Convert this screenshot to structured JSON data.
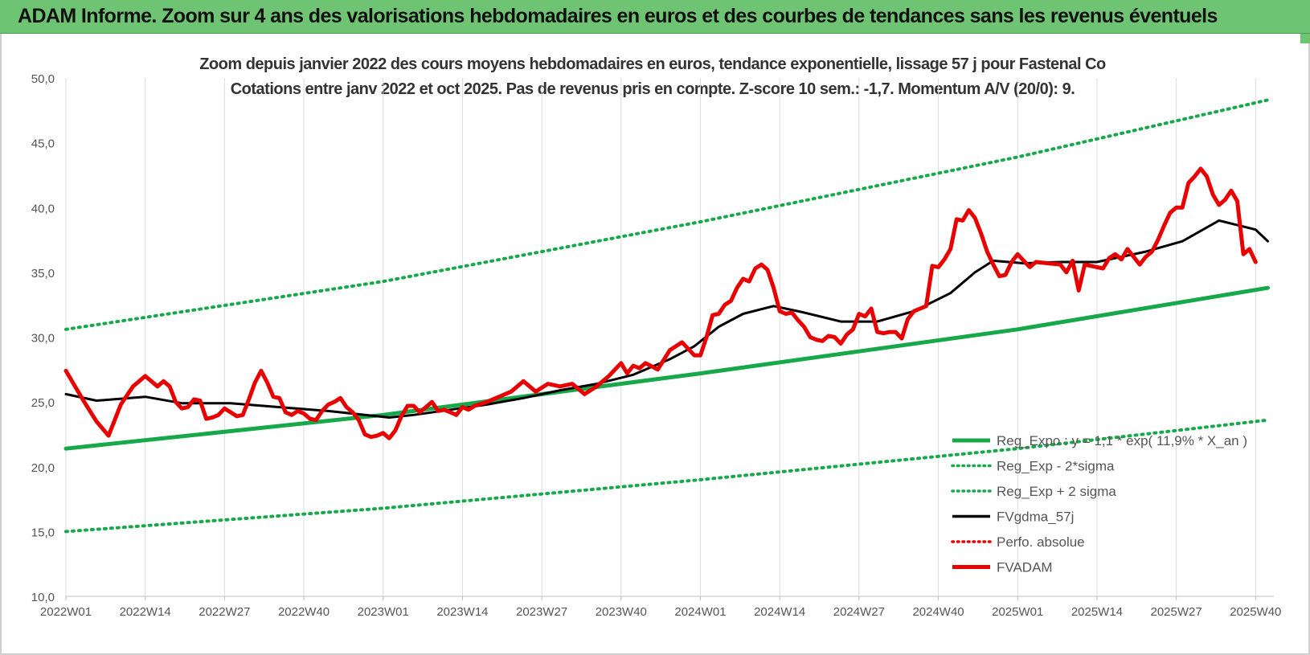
{
  "banner": {
    "title": "ADAM Informe. Zoom sur 4 ans des valorisations hebdomadaires en euros et des courbes de tendances sans les revenus éventuels"
  },
  "chart_data": {
    "type": "line",
    "title_line1": "Zoom depuis janvier 2022 des cours moyens hebdomadaires en euros, tendance exponentielle, lissage 57 j pour Fastenal Co",
    "title_line2": "Cotations entre janv 2022 et oct 2025. Pas de revenus pris en compte. Z-score 10 sem.: -1,7.  Momentum A/V (20/0): 9.",
    "ylim": [
      10,
      50
    ],
    "yticks": [
      "10,0",
      "15,0",
      "20,0",
      "25,0",
      "30,0",
      "35,0",
      "40,0",
      "45,0",
      "50,0"
    ],
    "x_range": [
      1,
      198
    ],
    "xticks": [
      {
        "x": 1,
        "label": "2022W01"
      },
      {
        "x": 14,
        "label": "2022W14"
      },
      {
        "x": 27,
        "label": "2022W27"
      },
      {
        "x": 40,
        "label": "2022W40"
      },
      {
        "x": 53,
        "label": "2023W01"
      },
      {
        "x": 66,
        "label": "2023W14"
      },
      {
        "x": 79,
        "label": "2023W27"
      },
      {
        "x": 92,
        "label": "2023W40"
      },
      {
        "x": 105,
        "label": "2024W01"
      },
      {
        "x": 118,
        "label": "2024W14"
      },
      {
        "x": 131,
        "label": "2024W27"
      },
      {
        "x": 144,
        "label": "2024W40"
      },
      {
        "x": 157,
        "label": "2025W01"
      },
      {
        "x": 170,
        "label": "2025W14"
      },
      {
        "x": 183,
        "label": "2025W27"
      },
      {
        "x": 196,
        "label": "2025W40"
      }
    ],
    "grid": "vertical",
    "legend_position": "bottom-right",
    "series": [
      {
        "name": "Reg_Expo : y = 1,1 * exp( 11,9% *  X_an )",
        "color": "#17a84a",
        "style": "solid-thick",
        "points": [
          [
            1,
            21.4
          ],
          [
            53,
            24.0
          ],
          [
            105,
            27.2
          ],
          [
            157,
            30.6
          ],
          [
            198,
            33.8
          ]
        ]
      },
      {
        "name": "Reg_Exp - 2*sigma",
        "color": "#17a84a",
        "style": "dotted",
        "points": [
          [
            1,
            15.0
          ],
          [
            53,
            16.8
          ],
          [
            105,
            19.0
          ],
          [
            157,
            21.4
          ],
          [
            198,
            23.6
          ]
        ]
      },
      {
        "name": "Reg_Exp + 2 sigma",
        "color": "#17a84a",
        "style": "dotted",
        "points": [
          [
            1,
            30.6
          ],
          [
            53,
            34.3
          ],
          [
            105,
            38.9
          ],
          [
            157,
            43.9
          ],
          [
            198,
            48.3
          ]
        ]
      },
      {
        "name": "FVgdma_57j",
        "color": "#000000",
        "style": "solid",
        "points": [
          [
            1,
            25.6
          ],
          [
            6,
            25.1
          ],
          [
            14,
            25.4
          ],
          [
            20,
            24.9
          ],
          [
            28,
            24.9
          ],
          [
            36,
            24.6
          ],
          [
            44,
            24.3
          ],
          [
            50,
            24.0
          ],
          [
            54,
            23.8
          ],
          [
            58,
            24.0
          ],
          [
            64,
            24.4
          ],
          [
            70,
            24.8
          ],
          [
            76,
            25.3
          ],
          [
            82,
            25.9
          ],
          [
            88,
            26.4
          ],
          [
            94,
            27.1
          ],
          [
            100,
            28.3
          ],
          [
            104,
            29.3
          ],
          [
            108,
            30.8
          ],
          [
            112,
            31.8
          ],
          [
            117,
            32.4
          ],
          [
            122,
            31.9
          ],
          [
            128,
            31.2
          ],
          [
            134,
            31.2
          ],
          [
            140,
            32.0
          ],
          [
            146,
            33.4
          ],
          [
            150,
            35.0
          ],
          [
            153,
            35.9
          ],
          [
            158,
            35.7
          ],
          [
            164,
            35.8
          ],
          [
            170,
            35.8
          ],
          [
            178,
            36.6
          ],
          [
            184,
            37.4
          ],
          [
            190,
            39.0
          ],
          [
            196,
            38.3
          ],
          [
            198,
            37.4
          ]
        ]
      },
      {
        "name": "Perfo. absolue",
        "color": "#e80000",
        "style": "dotted",
        "points": []
      },
      {
        "name": "FVADAM",
        "color": "#e80000",
        "style": "solid-thick",
        "points": [
          [
            1,
            27.4
          ],
          [
            4,
            25.0
          ],
          [
            6,
            23.5
          ],
          [
            8,
            22.4
          ],
          [
            10,
            24.8
          ],
          [
            12,
            26.2
          ],
          [
            14,
            27.0
          ],
          [
            15,
            26.6
          ],
          [
            16,
            26.2
          ],
          [
            17,
            26.6
          ],
          [
            18,
            26.2
          ],
          [
            19,
            25.0
          ],
          [
            20,
            24.5
          ],
          [
            21,
            24.6
          ],
          [
            22,
            25.2
          ],
          [
            23,
            25.1
          ],
          [
            24,
            23.7
          ],
          [
            25,
            23.8
          ],
          [
            26,
            24.0
          ],
          [
            27,
            24.5
          ],
          [
            28,
            24.2
          ],
          [
            29,
            23.9
          ],
          [
            30,
            24.0
          ],
          [
            31,
            25.2
          ],
          [
            32,
            26.5
          ],
          [
            33,
            27.4
          ],
          [
            34,
            26.5
          ],
          [
            35,
            25.4
          ],
          [
            36,
            25.3
          ],
          [
            37,
            24.2
          ],
          [
            38,
            24.0
          ],
          [
            39,
            24.3
          ],
          [
            40,
            24.1
          ],
          [
            41,
            23.7
          ],
          [
            42,
            23.6
          ],
          [
            43,
            24.3
          ],
          [
            44,
            24.8
          ],
          [
            45,
            25.0
          ],
          [
            46,
            25.3
          ],
          [
            47,
            24.6
          ],
          [
            48,
            24.2
          ],
          [
            49,
            23.6
          ],
          [
            50,
            22.5
          ],
          [
            51,
            22.3
          ],
          [
            52,
            22.4
          ],
          [
            53,
            22.6
          ],
          [
            54,
            22.2
          ],
          [
            55,
            22.8
          ],
          [
            56,
            23.9
          ],
          [
            57,
            24.7
          ],
          [
            58,
            24.7
          ],
          [
            59,
            24.2
          ],
          [
            60,
            24.6
          ],
          [
            61,
            25.0
          ],
          [
            62,
            24.3
          ],
          [
            63,
            24.4
          ],
          [
            64,
            24.2
          ],
          [
            65,
            24.0
          ],
          [
            66,
            24.6
          ],
          [
            67,
            24.4
          ],
          [
            68,
            24.7
          ],
          [
            70,
            25.0
          ],
          [
            72,
            25.4
          ],
          [
            74,
            25.8
          ],
          [
            76,
            26.6
          ],
          [
            78,
            25.8
          ],
          [
            80,
            26.4
          ],
          [
            82,
            26.2
          ],
          [
            84,
            26.4
          ],
          [
            86,
            25.6
          ],
          [
            88,
            26.2
          ],
          [
            90,
            27.0
          ],
          [
            92,
            28.0
          ],
          [
            93,
            27.2
          ],
          [
            94,
            27.8
          ],
          [
            95,
            27.6
          ],
          [
            96,
            28.0
          ],
          [
            98,
            27.5
          ],
          [
            100,
            29.0
          ],
          [
            102,
            29.6
          ],
          [
            104,
            28.6
          ],
          [
            105,
            28.6
          ],
          [
            106,
            30.0
          ],
          [
            107,
            31.7
          ],
          [
            108,
            31.8
          ],
          [
            109,
            32.5
          ],
          [
            110,
            32.8
          ],
          [
            111,
            33.8
          ],
          [
            112,
            34.5
          ],
          [
            113,
            34.3
          ],
          [
            114,
            35.3
          ],
          [
            115,
            35.6
          ],
          [
            116,
            35.2
          ],
          [
            117,
            33.8
          ],
          [
            118,
            32.0
          ],
          [
            119,
            31.8
          ],
          [
            120,
            31.9
          ],
          [
            121,
            31.3
          ],
          [
            122,
            30.8
          ],
          [
            123,
            30.0
          ],
          [
            124,
            29.8
          ],
          [
            125,
            29.7
          ],
          [
            126,
            30.1
          ],
          [
            127,
            30.0
          ],
          [
            128,
            29.5
          ],
          [
            129,
            30.2
          ],
          [
            130,
            30.6
          ],
          [
            131,
            31.8
          ],
          [
            132,
            31.6
          ],
          [
            133,
            32.2
          ],
          [
            134,
            30.4
          ],
          [
            135,
            30.3
          ],
          [
            136,
            30.4
          ],
          [
            137,
            30.4
          ],
          [
            138,
            29.9
          ],
          [
            139,
            31.4
          ],
          [
            140,
            32.0
          ],
          [
            141,
            32.2
          ],
          [
            142,
            32.4
          ],
          [
            143,
            35.5
          ],
          [
            144,
            35.4
          ],
          [
            145,
            36.0
          ],
          [
            146,
            36.8
          ],
          [
            147,
            39.1
          ],
          [
            148,
            39.0
          ],
          [
            149,
            39.8
          ],
          [
            150,
            39.2
          ],
          [
            151,
            38.0
          ],
          [
            152,
            36.6
          ],
          [
            153,
            35.6
          ],
          [
            154,
            34.7
          ],
          [
            155,
            34.8
          ],
          [
            156,
            35.8
          ],
          [
            157,
            36.4
          ],
          [
            158,
            35.9
          ],
          [
            159,
            35.4
          ],
          [
            160,
            35.8
          ],
          [
            162,
            35.7
          ],
          [
            164,
            35.6
          ],
          [
            165,
            35.0
          ],
          [
            166,
            35.9
          ],
          [
            167,
            33.6
          ],
          [
            168,
            35.6
          ],
          [
            170,
            35.4
          ],
          [
            171,
            35.3
          ],
          [
            172,
            36.1
          ],
          [
            173,
            36.4
          ],
          [
            174,
            36.0
          ],
          [
            175,
            36.8
          ],
          [
            176,
            36.2
          ],
          [
            177,
            35.6
          ],
          [
            178,
            36.2
          ],
          [
            179,
            36.6
          ],
          [
            180,
            37.5
          ],
          [
            181,
            38.6
          ],
          [
            182,
            39.6
          ],
          [
            183,
            40.0
          ],
          [
            184,
            40.0
          ],
          [
            185,
            41.9
          ],
          [
            186,
            42.4
          ],
          [
            187,
            43.0
          ],
          [
            188,
            42.4
          ],
          [
            189,
            41.0
          ],
          [
            190,
            40.2
          ],
          [
            191,
            40.6
          ],
          [
            192,
            41.3
          ],
          [
            193,
            40.5
          ],
          [
            194,
            36.4
          ],
          [
            195,
            36.8
          ],
          [
            196,
            35.8
          ]
        ]
      }
    ]
  }
}
